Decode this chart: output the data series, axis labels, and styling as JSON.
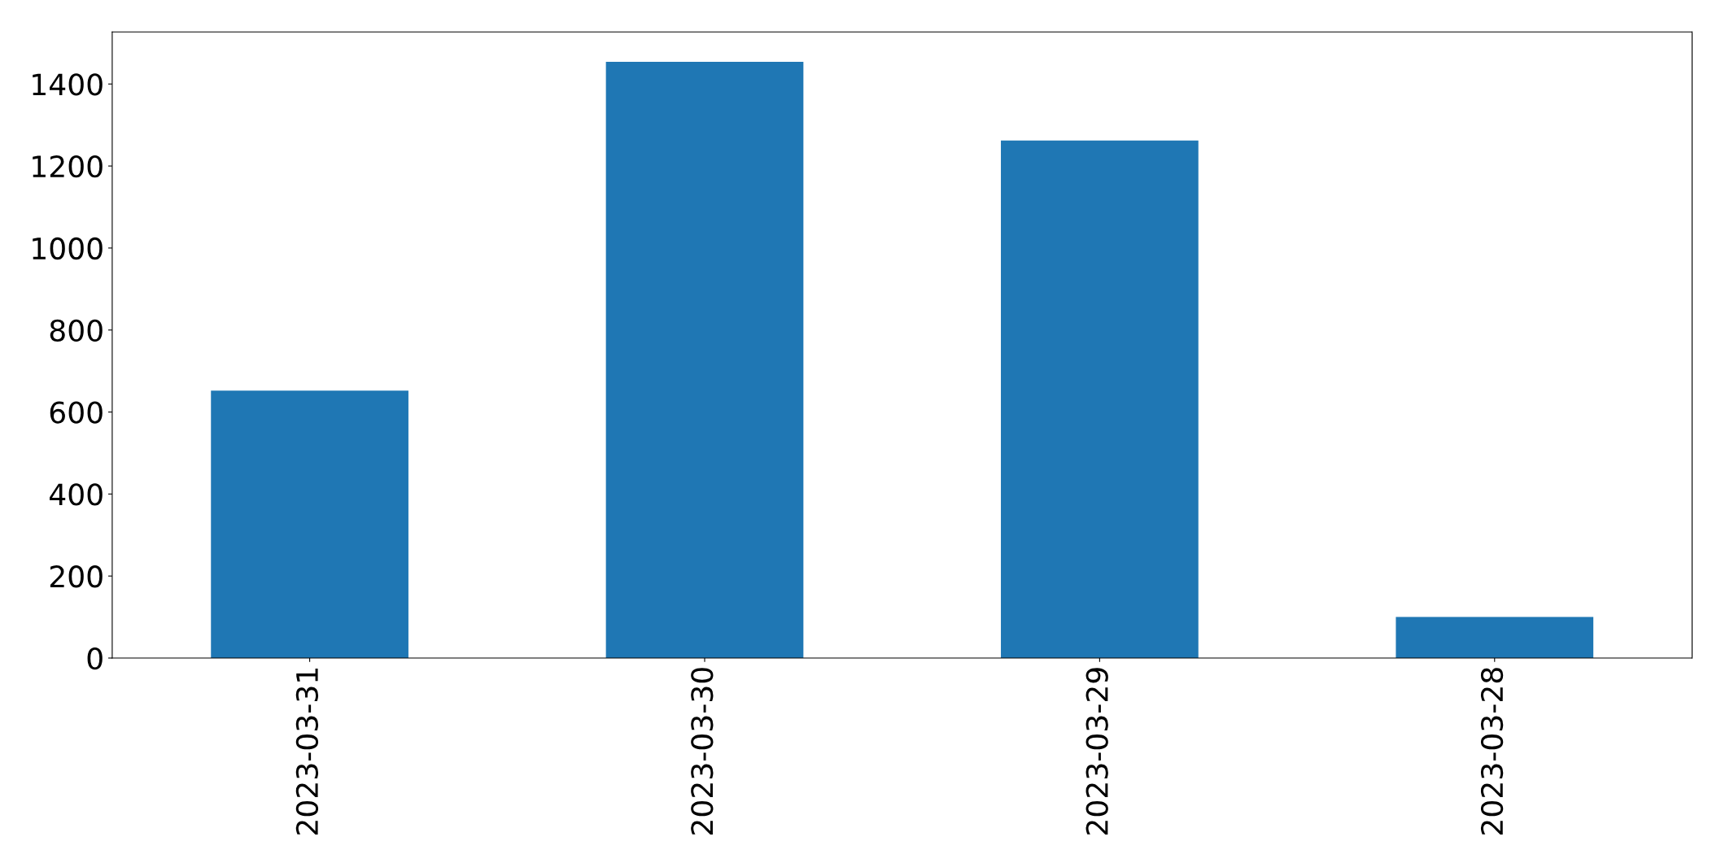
{
  "chart_data": {
    "type": "bar",
    "categories": [
      "2023-03-31",
      "2023-03-30",
      "2023-03-29",
      "2023-03-28"
    ],
    "values": [
      652,
      1454,
      1262,
      100
    ],
    "color": "#1f77b4",
    "ylim": [
      0,
      1527
    ],
    "yticks": [
      0,
      200,
      400,
      600,
      800,
      1000,
      1200,
      1400
    ],
    "grid": false,
    "legend": false
  }
}
